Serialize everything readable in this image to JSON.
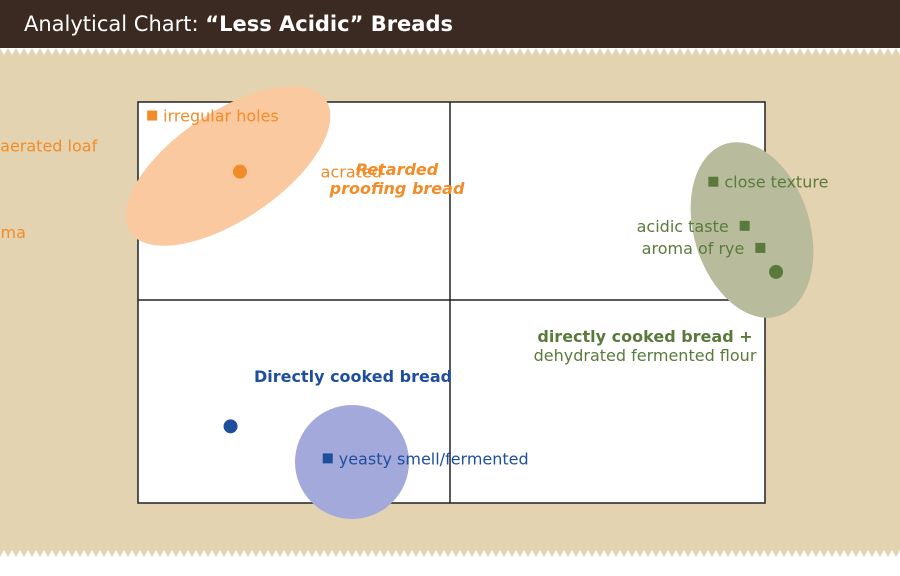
{
  "title": {
    "prefix": "Analytical Chart: ",
    "main": "“Less Acidic” Breads"
  },
  "colors": {
    "header_bg": "#3b2a21",
    "panel_bg": "#e3d3b0",
    "orange": "#f28c28",
    "orange_fill": "#fbc9a0",
    "green": "#5a7a3c",
    "green_fill": "#b8bc9c",
    "blue": "#1f4e9c",
    "blue_fill": "#a4a9dc"
  },
  "chart_data": {
    "type": "scatter",
    "title": "Analytical Chart: “Less Acidic” Breads",
    "xlabel": "",
    "ylabel": "",
    "xlim": [
      -1,
      1
    ],
    "ylim": [
      -1,
      1
    ],
    "quadrant_lines": true,
    "groups": [
      {
        "name": "Retarded proofing bread",
        "label_lines": [
          "Retarded",
          "proofing bread"
        ],
        "color": "orange",
        "label_style": "bold-italic",
        "bread_point": {
          "x": -0.67,
          "y": 0.64
        },
        "attributes": [
          {
            "label": "irregular holes",
            "x": -0.95,
            "y": 0.92
          },
          {
            "label": "aerated loaf",
            "x": -1.47,
            "y": 0.77
          },
          {
            "label": "acrated",
            "x": -0.47,
            "y": 0.64
          },
          {
            "label": "white flour aroma",
            "x": -1.84,
            "y": 0.34
          }
        ]
      },
      {
        "name": "directly cooked bread + dehydrated fermented flour",
        "label_lines": [
          "directly cooked bread +",
          "dehydrated fermented flour"
        ],
        "color": "green",
        "label_style": "bold-first",
        "bread_point": {
          "x": 1.04,
          "y": 0.14
        },
        "attributes": [
          {
            "label": "close texture",
            "x": 0.84,
            "y": 0.59
          },
          {
            "label": "acidic taste",
            "x": 0.94,
            "y": 0.37
          },
          {
            "label": "aroma of rye",
            "x": 0.99,
            "y": 0.26
          }
        ]
      },
      {
        "name": "Directly cooked bread",
        "label_lines": [
          "Directly cooked bread"
        ],
        "color": "blue",
        "label_style": "bold",
        "bread_point": {
          "x": -0.7,
          "y": -0.63
        },
        "attributes": [
          {
            "label": "yeasty smell/fermented",
            "x": -0.39,
            "y": -0.79
          }
        ]
      }
    ]
  }
}
